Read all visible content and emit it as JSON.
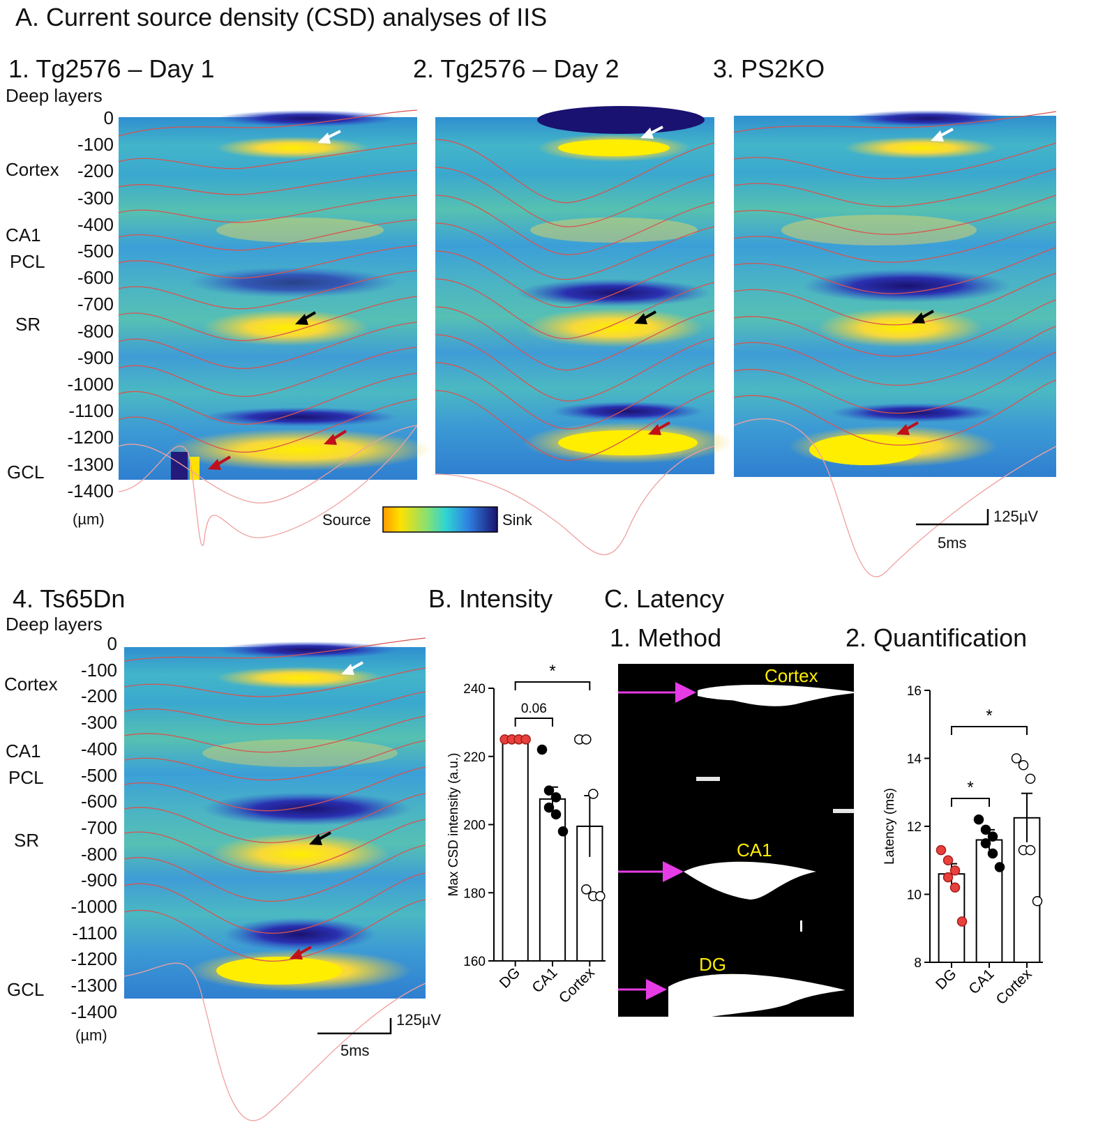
{
  "figure_title": "A. Current source density (CSD) analyses of IIS",
  "common": {
    "depth_header": "Deep layers",
    "depth_unit": "(µm)",
    "depth_ticks": [
      "0",
      "-100",
      "-200",
      "-300",
      "-400",
      "-500",
      "-600",
      "-700",
      "-800",
      "-900",
      "-1000",
      "-1100",
      "-1200",
      "-1300",
      "-1400"
    ],
    "region_labels": [
      "Cortex",
      "CA1",
      "PCL",
      "SR",
      "GCL"
    ],
    "colorbar": {
      "left": "Source",
      "right": "Sink"
    },
    "scale_bar": {
      "voltage": "125µV",
      "time": "5ms"
    }
  },
  "csd_panels": [
    {
      "title": "1. Tg2576 – Day 1"
    },
    {
      "title": "2. Tg2576 – Day 2"
    },
    {
      "title": "3. PS2KO"
    },
    {
      "title": "4. Ts65Dn"
    }
  ],
  "colors": {
    "sink": "#1f1a8c",
    "source": "#ffe100",
    "background": "#38a6d6",
    "trace": "#e35b5b",
    "dg_marker": "#e8403c",
    "arrow": "#e63ce6",
    "latency_label": "#ffee00"
  },
  "latency_method": {
    "title": "C. Latency",
    "subtitle": "1. Method",
    "labels": [
      "Cortex",
      "CA1",
      "DG"
    ]
  },
  "chart_data": [
    {
      "type": "bar",
      "title": "B. Intensity",
      "ylabel": "Max CSD intensity (a.u.)",
      "xlabel": "",
      "categories": [
        "DG",
        "CA1",
        "Cortex"
      ],
      "values": [
        225,
        207.5,
        199.5
      ],
      "sem": [
        0.3,
        3.5,
        9
      ],
      "points": [
        [
          225,
          225,
          225,
          225,
          225,
          225
        ],
        [
          222,
          210,
          208,
          205,
          203,
          198
        ],
        [
          225,
          225,
          209,
          181,
          179,
          179
        ]
      ],
      "ylim": [
        160,
        240
      ],
      "yticks": [
        "160",
        "180",
        "200",
        "220",
        "240"
      ],
      "annotations": [
        "0.06",
        "*"
      ]
    },
    {
      "type": "bar",
      "title": "2. Quantification",
      "ylabel": "Latency (ms)",
      "xlabel": "",
      "categories": [
        "DG",
        "CA1",
        "Cortex"
      ],
      "values": [
        10.6,
        11.6,
        12.25
      ],
      "sem": [
        0.3,
        0.3,
        0.72
      ],
      "points": [
        [
          11.3,
          11.0,
          10.7,
          10.5,
          10.2,
          9.2
        ],
        [
          12.2,
          11.9,
          11.7,
          11.5,
          11.2,
          10.8
        ],
        [
          14.0,
          13.8,
          13.4,
          11.3,
          11.3,
          9.8
        ]
      ],
      "ylim": [
        8,
        16
      ],
      "yticks": [
        "8",
        "10",
        "12",
        "14",
        "16"
      ],
      "annotations": [
        "*",
        "*"
      ]
    }
  ]
}
